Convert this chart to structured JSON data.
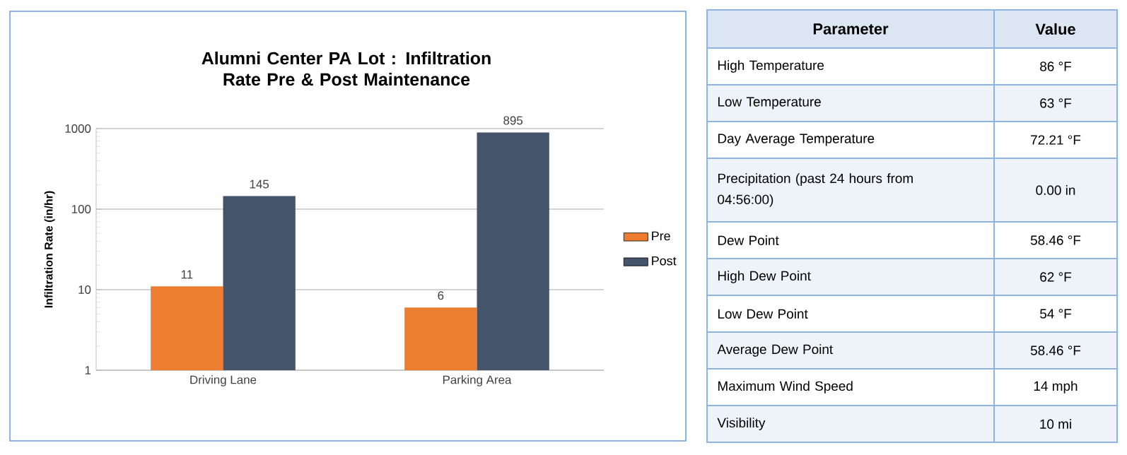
{
  "chart_data": [
    {
      "type": "bar",
      "title": "Alumni Center PA Lot : Infiltration Rate Pre & Post Maintenance",
      "ylabel": "Infiltration Rate (in/hr)",
      "categories": [
        "Driving Lane",
        "Parking Area"
      ],
      "series": [
        {
          "name": "Pre",
          "color": "#ed7d31",
          "values": [
            11,
            6
          ]
        },
        {
          "name": "Post",
          "color": "#44546a",
          "values": [
            145,
            895
          ]
        }
      ],
      "log": true,
      "ylim": [
        1,
        1000
      ],
      "yticks": [
        1,
        10,
        100,
        1000
      ],
      "grid": "y",
      "legend": "right",
      "data_labels": true
    },
    {
      "type": "other",
      "annotations": [
        "Parameter",
        "Value",
        "High Temperature",
        "86 °F",
        "Low Temperature",
        "63 °F",
        "Day Average Temperature",
        "72.21 °F",
        "Precipitation (past 24 hours from 04:56:00)",
        "0.00 in",
        "Dew Point",
        "58.46 °F",
        "High Dew Point",
        "62 °F",
        "Low Dew Point",
        "54 °F",
        "Average Dew Point",
        "58.46 °F",
        "Maximum Wind Speed",
        "14 mph",
        "Visibility",
        "10 mi"
      ]
    }
  ]
}
